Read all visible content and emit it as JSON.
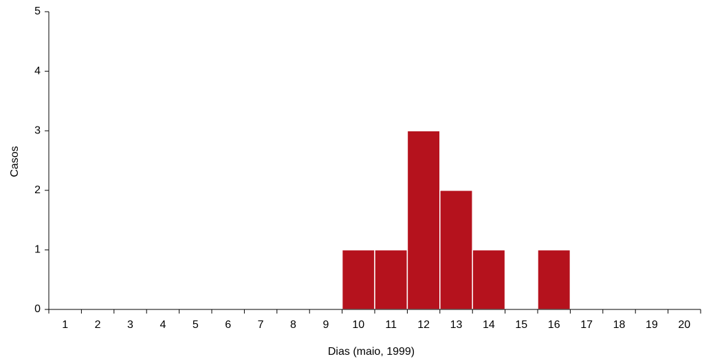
{
  "chart_data": {
    "type": "bar",
    "x_label": "Dias (maio, 1999)",
    "y_label": "Casos",
    "categories": [
      "1",
      "2",
      "3",
      "4",
      "5",
      "6",
      "7",
      "8",
      "9",
      "10",
      "11",
      "12",
      "13",
      "14",
      "15",
      "16",
      "17",
      "18",
      "19",
      "20"
    ],
    "values": [
      0,
      0,
      0,
      0,
      0,
      0,
      0,
      0,
      0,
      1,
      1,
      3,
      2,
      1,
      0,
      1,
      0,
      0,
      0,
      0
    ],
    "color": "#b5121d",
    "ylim": [
      0,
      5
    ],
    "yticks": [
      0,
      1,
      2,
      3,
      4,
      5
    ],
    "grid": false
  }
}
